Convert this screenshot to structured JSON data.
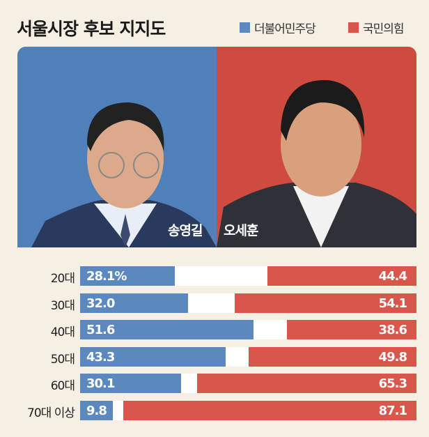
{
  "chart_data": {
    "type": "bar",
    "title": "서울시장 후보 지지도",
    "legend": [
      {
        "name": "더불어민주당",
        "color": "#5b88be"
      },
      {
        "name": "국민의힘",
        "color": "#d9574a"
      }
    ],
    "candidates": [
      "송영길",
      "오세훈"
    ],
    "categories": [
      "20대",
      "30대",
      "40대",
      "50대",
      "60대",
      "70대 이상"
    ],
    "series": [
      {
        "name": "더불어민주당",
        "values": [
          28.1,
          32.0,
          51.6,
          43.3,
          30.1,
          9.8
        ],
        "labels": [
          "28.1%",
          "32.0",
          "51.6",
          "43.3",
          "30.1",
          "9.8"
        ]
      },
      {
        "name": "국민의힘",
        "values": [
          44.4,
          54.1,
          38.6,
          49.8,
          65.3,
          87.1
        ],
        "labels": [
          "44.4",
          "54.1",
          "38.6",
          "49.8",
          "65.3",
          "87.1"
        ]
      }
    ],
    "xlim": [
      0,
      100
    ]
  }
}
